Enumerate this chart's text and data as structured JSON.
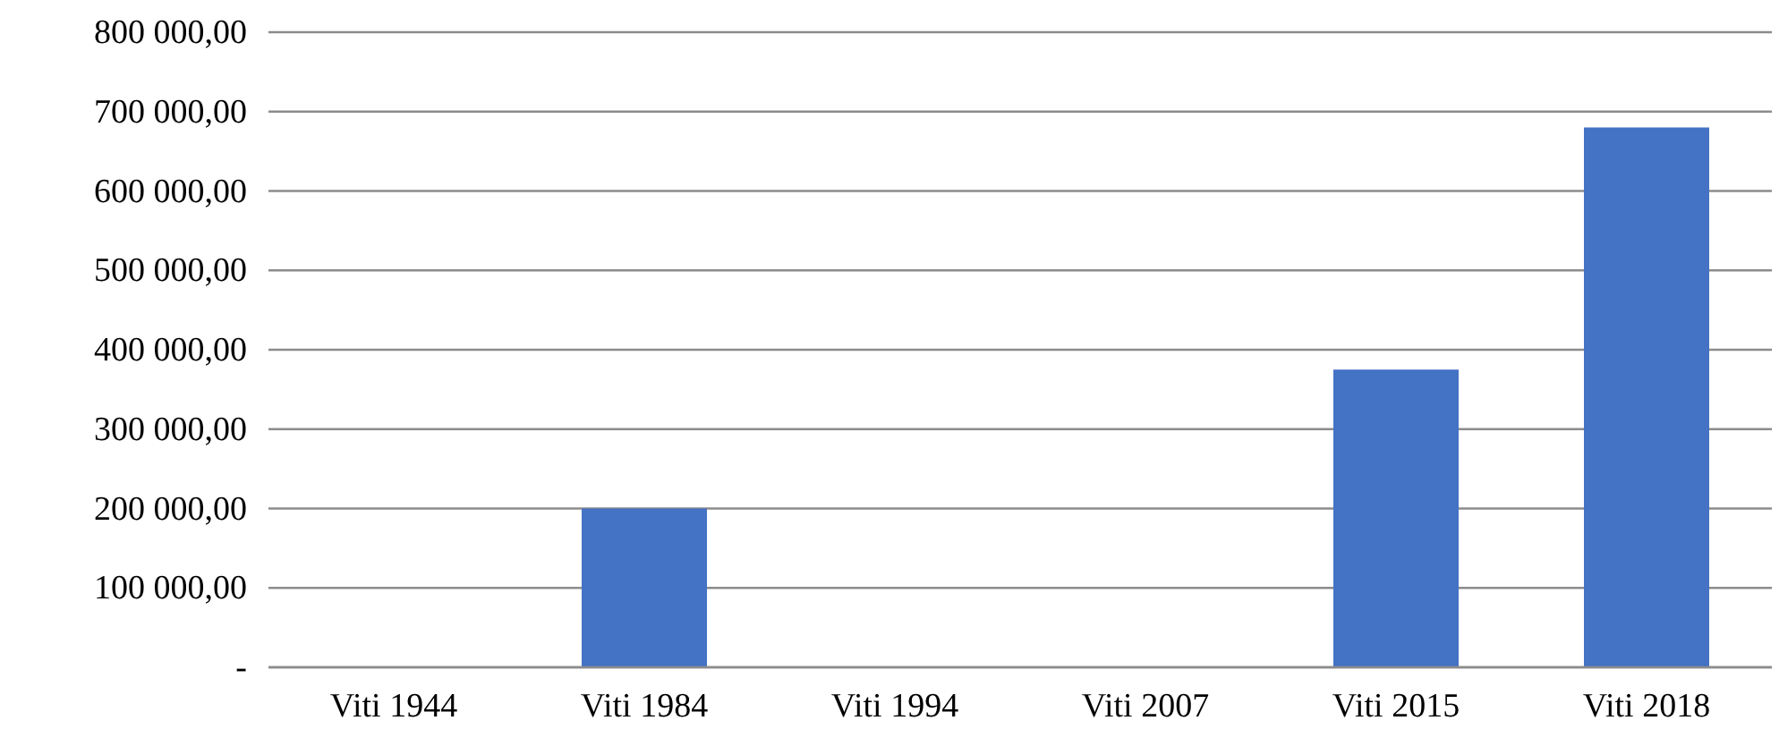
{
  "chart_data": {
    "type": "bar",
    "categories": [
      "Viti 1944",
      "Viti 1984",
      "Viti 1994",
      "Viti 2007",
      "Viti 2015",
      "Viti 2018"
    ],
    "values": [
      0,
      200000,
      0,
      0,
      375000,
      680000
    ],
    "color": "#4472c4",
    "ylim": [
      0,
      800000
    ],
    "yticks": [
      {
        "value": 0,
        "label": "-"
      },
      {
        "value": 100000,
        "label": "100 000,00"
      },
      {
        "value": 200000,
        "label": "200 000,00"
      },
      {
        "value": 300000,
        "label": "300 000,00"
      },
      {
        "value": 400000,
        "label": "400 000,00"
      },
      {
        "value": 500000,
        "label": "500 000,00"
      },
      {
        "value": 600000,
        "label": "600 000,00"
      },
      {
        "value": 700000,
        "label": "700 000,00"
      },
      {
        "value": 800000,
        "label": "800 000,00"
      }
    ],
    "grid": "y"
  }
}
